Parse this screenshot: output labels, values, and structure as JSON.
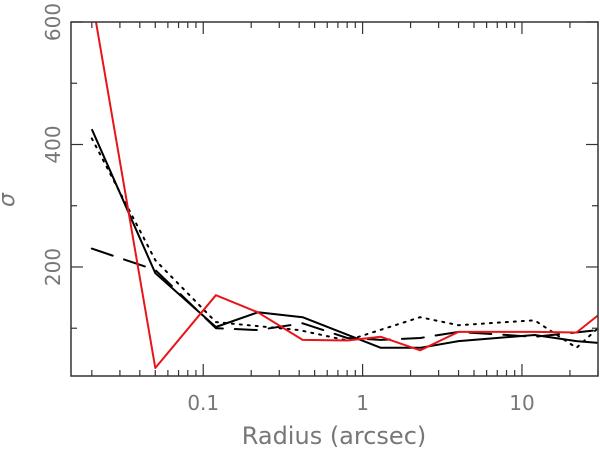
{
  "chart_data": {
    "type": "line",
    "title": "",
    "xlabel": "Radius (arcsec)",
    "ylabel": "σ",
    "xscale": "log",
    "xlim": [
      0.0148,
      30
    ],
    "ylim": [
      22,
      600
    ],
    "x_ticks": [
      {
        "v": 0.1,
        "label": "0.1"
      },
      {
        "v": 1,
        "label": "1"
      },
      {
        "v": 10,
        "label": "10"
      }
    ],
    "y_ticks": [
      {
        "v": 200,
        "label": "200"
      },
      {
        "v": 400,
        "label": "400"
      },
      {
        "v": 600,
        "label": "600"
      }
    ],
    "grid": false,
    "series": [
      {
        "name": "solid-black",
        "color": "#000000",
        "dash": "",
        "x": [
          0.02,
          0.05,
          0.12,
          0.22,
          0.42,
          1.3,
          2.3,
          4,
          12,
          22,
          30
        ],
        "y": [
          425,
          190,
          102,
          126,
          118,
          68,
          68,
          79,
          89,
          79,
          76
        ]
      },
      {
        "name": "dotted-black",
        "color": "#000000",
        "dash": "2,6",
        "x": [
          0.02,
          0.05,
          0.12,
          0.4,
          0.8,
          2.3,
          4,
          12,
          22,
          30
        ],
        "y": [
          410,
          211,
          110,
          97,
          80,
          118,
          105,
          113,
          68,
          100
        ]
      },
      {
        "name": "dashed-black",
        "color": "#000000",
        "dash": "22,12",
        "x": [
          0.02,
          0.05,
          0.12,
          0.22,
          0.42,
          0.8,
          1.3,
          2.3,
          4,
          12,
          30
        ],
        "y": [
          230,
          195,
          100,
          97,
          108,
          84,
          81,
          84,
          94,
          86,
          97
        ]
      },
      {
        "name": "solid-red",
        "color": "#e8141a",
        "dash": "",
        "x": [
          0.02,
          0.05,
          0.12,
          0.22,
          0.42,
          0.8,
          1.3,
          2.3,
          4,
          12,
          22,
          30
        ],
        "y": [
          640,
          35,
          154,
          126,
          81,
          80,
          86,
          64,
          94,
          94,
          93,
          121
        ]
      }
    ]
  }
}
